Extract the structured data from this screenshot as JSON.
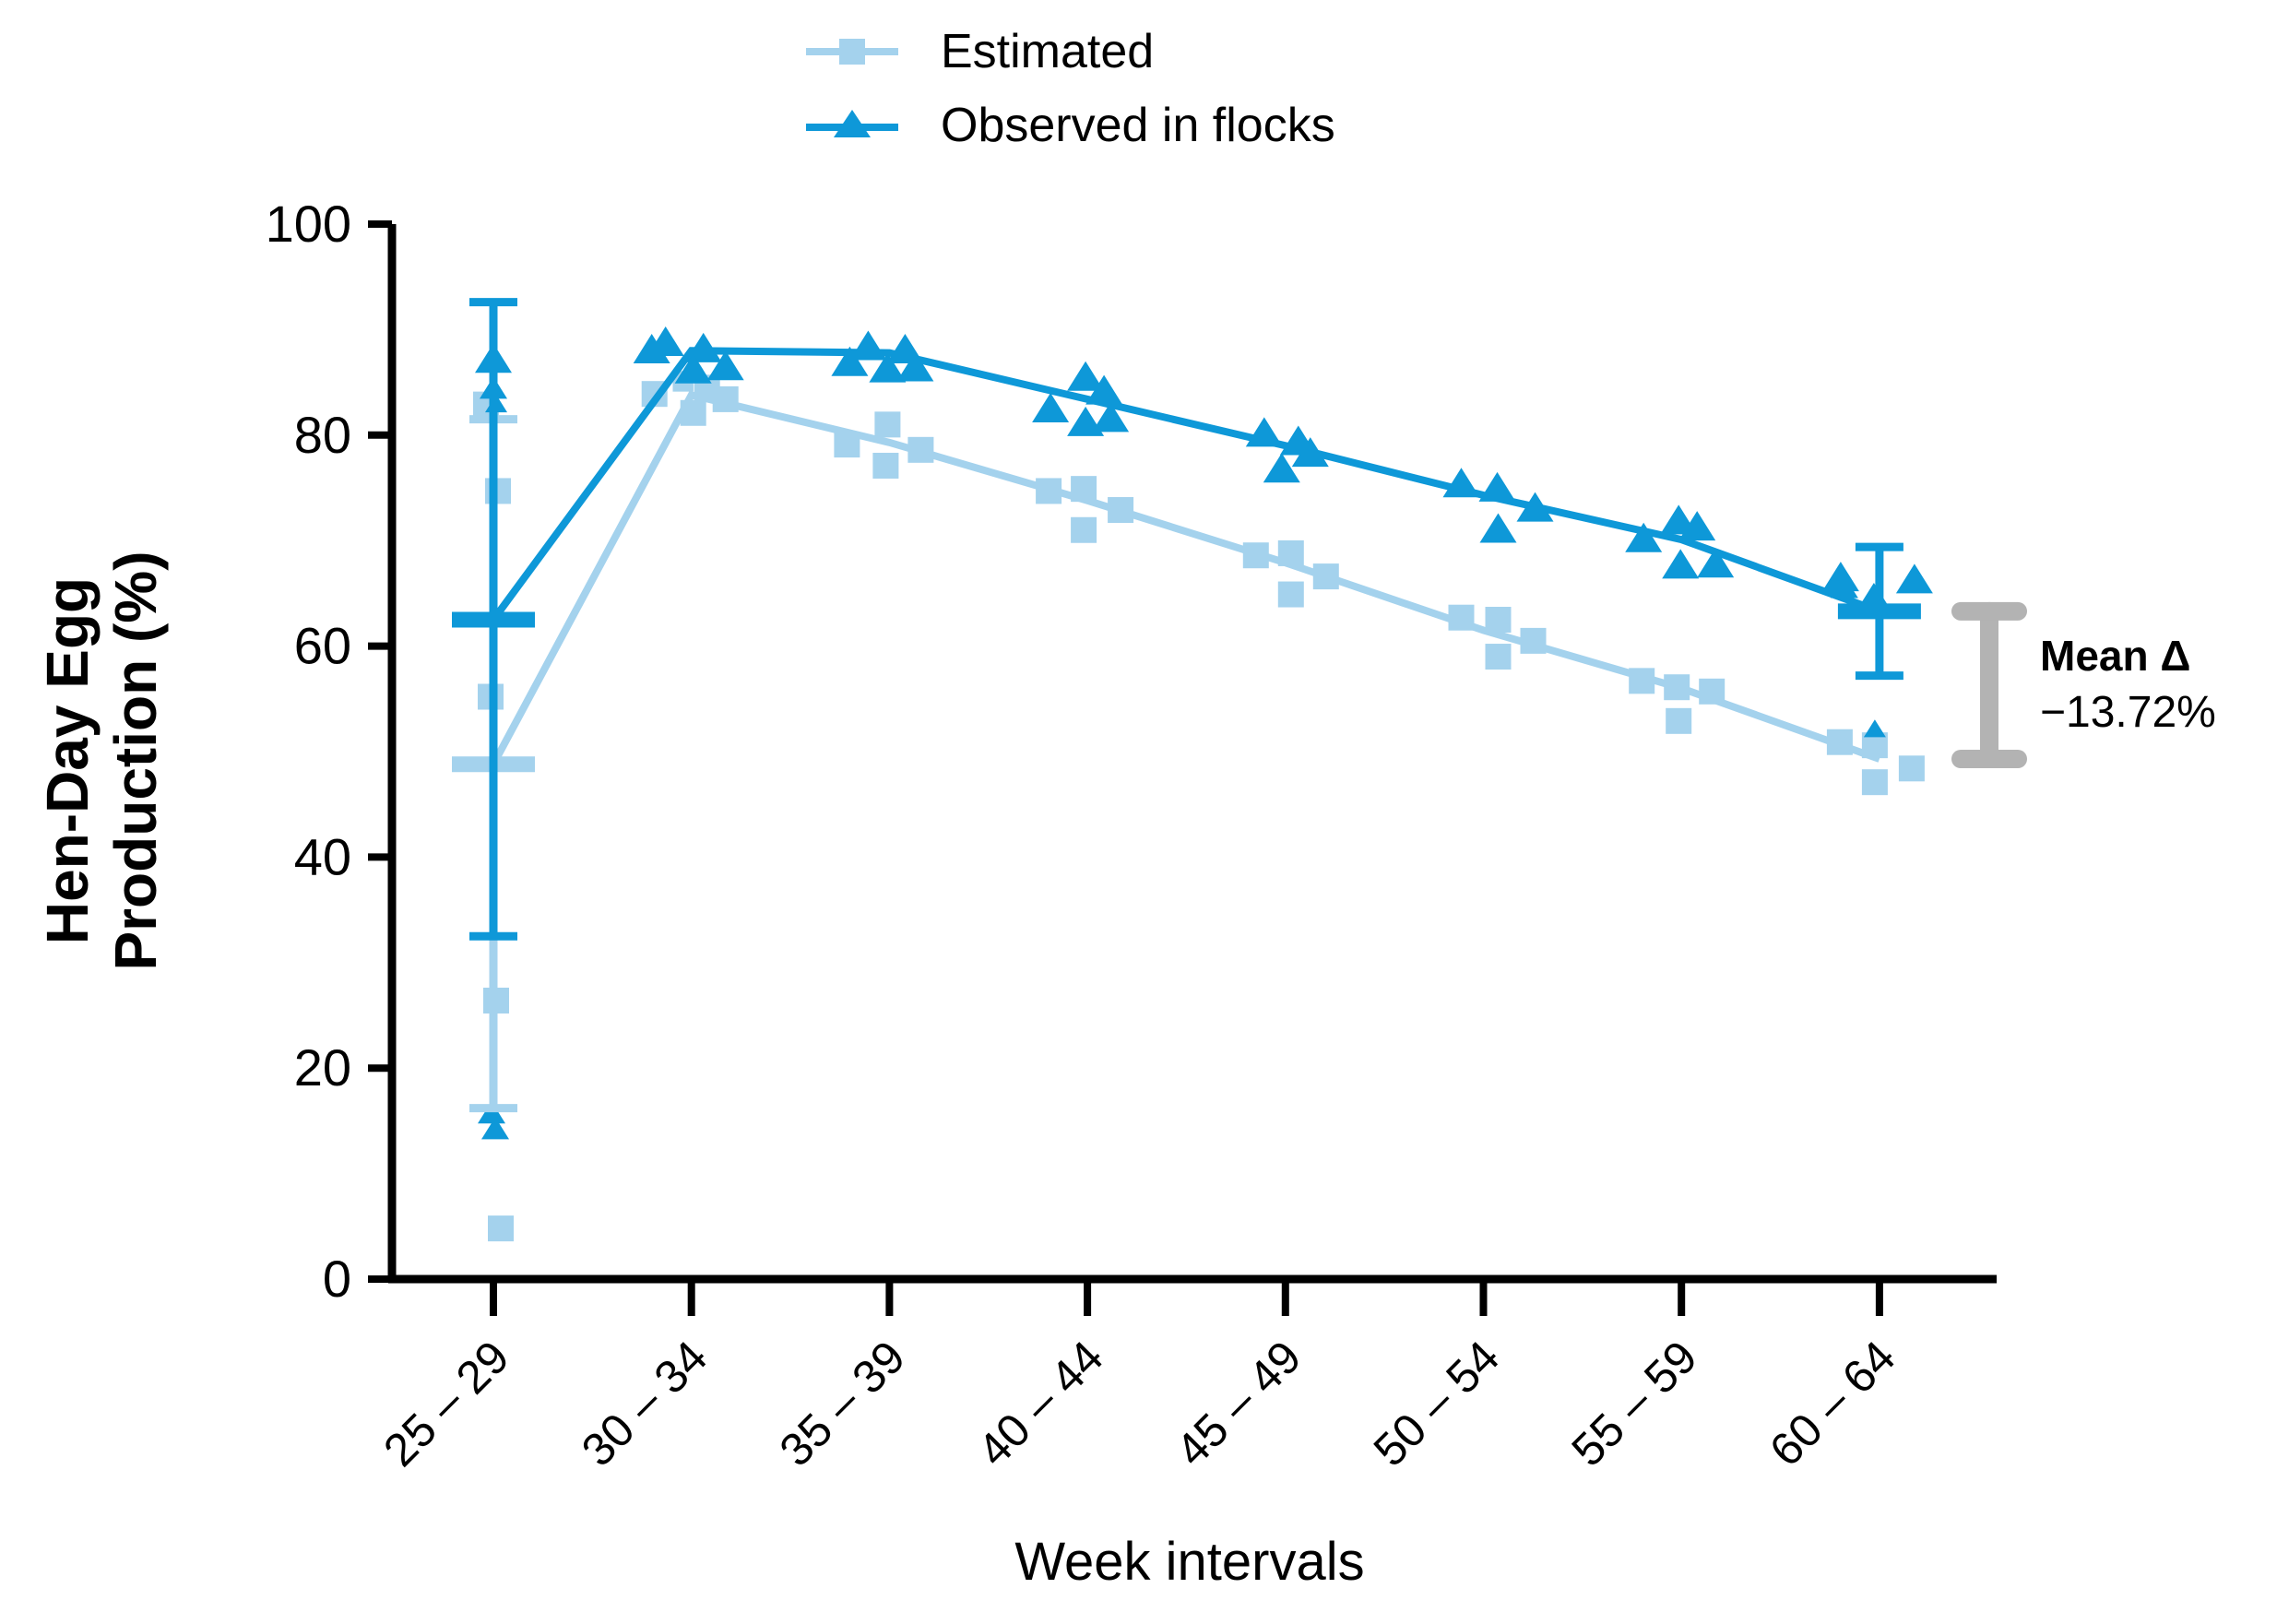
{
  "legend": {
    "estimated_label": "Estimated",
    "observed_label": "Observed in flocks"
  },
  "axes": {
    "y_label_line1": "Hen-Day Egg",
    "y_label_line2": "Production (%)",
    "x_label": "Week intervals"
  },
  "annotation": {
    "line1": "Mean Δ",
    "line2": "−13.72%"
  },
  "colors": {
    "estimated": "#A4D2ED",
    "observed": "#0E98D8",
    "bracket_gray": "#B3B3B3",
    "axis_black": "#000000"
  },
  "chart_data": {
    "type": "scatter",
    "title": "",
    "xlabel": "Week intervals",
    "ylabel": "Hen-Day Egg Production (%)",
    "ylim": [
      0,
      100
    ],
    "yticks": [
      0,
      20,
      40,
      60,
      80,
      100
    ],
    "grid": false,
    "legend_position": "top-center",
    "categories": [
      "25 – 29",
      "30 – 34",
      "35 – 39",
      "40 – 44",
      "45 – 49",
      "50 – 54",
      "55 – 59",
      "60 – 64"
    ],
    "series": [
      {
        "name": "Estimated",
        "marker": "square",
        "color": "#A4D2ED",
        "mean_line": [
          48.8,
          83.8,
          79.3,
          73.8,
          67.9,
          61.5,
          56.0,
          49.3
        ],
        "points": [
          [
            {
              "dx": -8,
              "v": 82.9
            },
            {
              "dx": 5,
              "v": 74.7
            },
            {
              "dx": -3,
              "v": 55.2
            },
            {
              "dx": 3,
              "v": 26.4
            },
            {
              "dx": 8,
              "v": 4.8
            }
          ],
          [
            {
              "dx": -40,
              "v": 83.9
            },
            {
              "dx": -9,
              "v": 85.1,
              "s": 0.8
            },
            {
              "dx": 17,
              "v": 84.5
            },
            {
              "dx": 37,
              "v": 83.4
            },
            {
              "dx": 2,
              "v": 82.1
            }
          ],
          [
            {
              "dx": -46,
              "v": 79.1
            },
            {
              "dx": -2,
              "v": 81.0
            },
            {
              "dx": 34,
              "v": 78.6
            },
            {
              "dx": -4,
              "v": 77.1
            }
          ],
          [
            {
              "dx": -42,
              "v": 74.7
            },
            {
              "dx": -4,
              "v": 74.9
            },
            {
              "dx": 36,
              "v": 72.9
            },
            {
              "dx": -4,
              "v": 71.0
            }
          ],
          [
            {
              "dx": -32,
              "v": 68.6
            },
            {
              "dx": 6,
              "v": 68.8
            },
            {
              "dx": 44,
              "v": 66.6
            },
            {
              "dx": 6,
              "v": 64.9
            }
          ],
          [
            {
              "dx": -24,
              "v": 62.7
            },
            {
              "dx": 16,
              "v": 62.5
            },
            {
              "dx": 54,
              "v": 60.5
            },
            {
              "dx": 16,
              "v": 59.0
            }
          ],
          [
            {
              "dx": -43,
              "v": 56.7
            },
            {
              "dx": -5,
              "v": 56.1
            },
            {
              "dx": 33,
              "v": 55.7
            },
            {
              "dx": -3,
              "v": 52.9
            }
          ],
          [
            {
              "dx": -43,
              "v": 50.9
            },
            {
              "dx": -5,
              "v": 50.6
            },
            {
              "dx": 35,
              "v": 48.4
            },
            {
              "dx": -5,
              "v": 47.1
            }
          ]
        ]
      },
      {
        "name": "Observed in flocks",
        "marker": "triangle",
        "color": "#0E98D8",
        "mean_line": [
          62.5,
          88.0,
          87.8,
          83.4,
          79.0,
          74.3,
          70.1,
          63.3
        ],
        "points": [
          [
            {
              "dx": 0,
              "v": 87.3
            },
            {
              "dx": 0,
              "v": 84.5,
              "s": 0.75
            },
            {
              "dx": 3,
              "v": 83.0,
              "s": 0.6
            },
            {
              "dx": -2,
              "v": 15.8,
              "s": 0.75
            },
            {
              "dx": 2,
              "v": 14.3,
              "s": 0.75
            }
          ],
          [
            {
              "dx": -43,
              "v": 88.2
            },
            {
              "dx": -28,
              "v": 88.9
            },
            {
              "dx": 13,
              "v": 88.3
            },
            {
              "dx": 2,
              "v": 86.3
            },
            {
              "dx": 37,
              "v": 86.6
            }
          ],
          [
            {
              "dx": -23,
              "v": 88.5
            },
            {
              "dx": 17,
              "v": 88.2
            },
            {
              "dx": -43,
              "v": 87.0
            },
            {
              "dx": -2,
              "v": 86.4
            },
            {
              "dx": 28,
              "v": 86.5
            }
          ],
          [
            {
              "dx": -2,
              "v": 85.6
            },
            {
              "dx": 18,
              "v": 84.3
            },
            {
              "dx": -40,
              "v": 82.6
            },
            {
              "dx": -2,
              "v": 81.3
            },
            {
              "dx": 25,
              "v": 81.7
            }
          ],
          [
            {
              "dx": -23,
              "v": 80.3
            },
            {
              "dx": 14,
              "v": 79.5
            },
            {
              "dx": -4,
              "v": 76.9
            },
            {
              "dx": 27,
              "v": 78.4
            }
          ],
          [
            {
              "dx": -24,
              "v": 75.5
            },
            {
              "dx": 15,
              "v": 75.1
            },
            {
              "dx": 56,
              "v": 73.2
            },
            {
              "dx": 16,
              "v": 71.2
            }
          ],
          [
            {
              "dx": -3,
              "v": 72.0
            },
            {
              "dx": 17,
              "v": 71.4
            },
            {
              "dx": -41,
              "v": 70.3
            },
            {
              "dx": -1,
              "v": 67.8
            },
            {
              "dx": 37,
              "v": 67.9
            }
          ],
          [
            {
              "dx": -42,
              "v": 66.6
            },
            {
              "dx": 38,
              "v": 66.4
            },
            {
              "dx": -38,
              "v": 65.6,
              "s": 0.75
            },
            {
              "dx": -6,
              "v": 64.6
            },
            {
              "dx": -5,
              "v": 52.2,
              "s": 0.6
            }
          ]
        ]
      }
    ],
    "error_bars": [
      {
        "series": 0,
        "cat": 0,
        "mean": 48.8,
        "lo": 16.2,
        "hi": 81.5
      },
      {
        "series": 1,
        "cat": 0,
        "mean": 62.5,
        "lo": 32.5,
        "hi": 92.6
      },
      {
        "series": 1,
        "cat": 7,
        "mean": 63.3,
        "lo": 57.2,
        "hi": 69.4
      }
    ],
    "mean_delta_bracket": {
      "top_value": 63.3,
      "bottom_value": 49.3,
      "label": "Mean Δ −13.72%"
    }
  }
}
